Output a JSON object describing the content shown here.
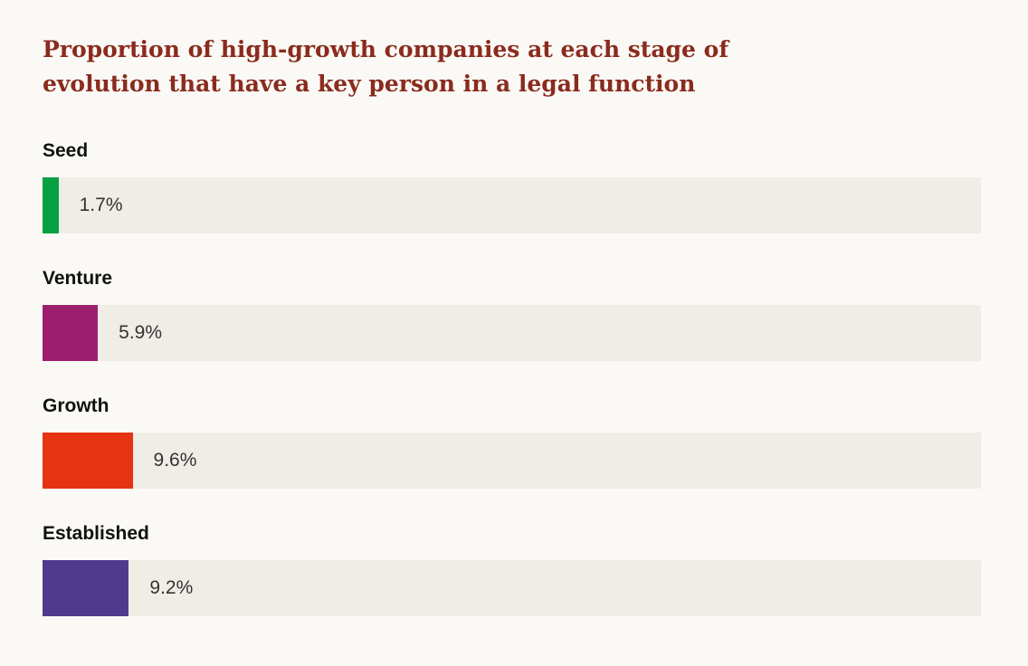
{
  "title": "Proportion of high-growth companies at each stage of evolution that have a key person in a legal function",
  "chart_data": {
    "type": "bar",
    "orientation": "horizontal",
    "title": "Proportion of high-growth companies at each stage of evolution that have a key person in a legal function",
    "categories": [
      "Seed",
      "Venture",
      "Growth",
      "Established"
    ],
    "values": [
      1.7,
      5.9,
      9.6,
      9.2
    ],
    "value_labels": [
      "1.7%",
      "5.9%",
      "9.6%",
      "9.2%"
    ],
    "colors": [
      "#07a043",
      "#9c1f6e",
      "#e63312",
      "#4f3a8e"
    ],
    "track_color": "#f0ede7",
    "xlim": [
      0,
      100
    ],
    "grid": false,
    "legend": "none"
  }
}
